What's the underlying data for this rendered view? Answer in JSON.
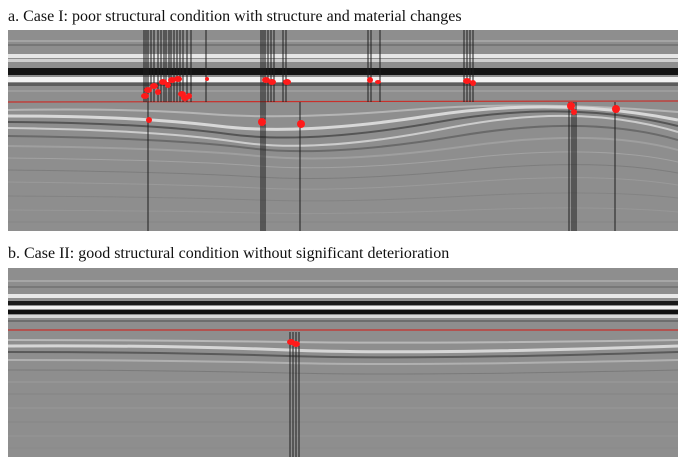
{
  "figure": {
    "case_a": {
      "caption": "a. Case I: poor structural condition with structure and material changes"
    },
    "case_b": {
      "caption": "b. Case II: good structural condition without significant deterioration"
    }
  },
  "colors": {
    "background_gray": "#8e8e8e",
    "reflector_dark": "#141414",
    "reflector_light": "#f2f2f2",
    "reference_line": "#c8302b",
    "anomaly_marker": "#ff1a1a",
    "anomaly_trace": "#1e1e1e"
  }
}
